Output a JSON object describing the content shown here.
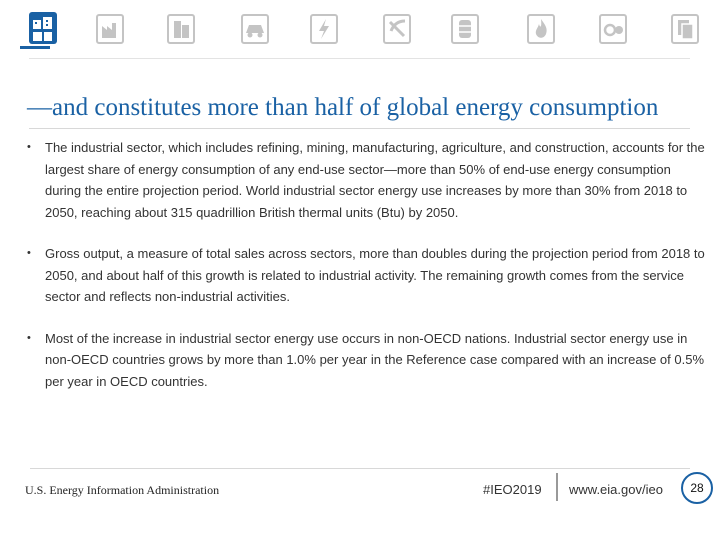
{
  "colors": {
    "accent": "#1a61a4",
    "icon_gray": "#b8b8b8",
    "text": "#333333",
    "divider": "#d8d8d8"
  },
  "icons": [
    "buildings-industry-icon",
    "industry-factory-icon",
    "commercial-buildings-icon",
    "car-icon",
    "electricity-bolt-icon",
    "coal-mining-icon",
    "oil-barrel-icon",
    "natural-gas-flame-icon",
    "renewables-gauge-icon",
    "documents-icon"
  ],
  "slide": {
    "title": "—and constitutes more than half of global energy consumption",
    "bullets": [
      "The industrial sector, which includes refining, mining, manufacturing, agriculture, and construction, accounts for the largest share of energy consumption of any end-use sector—more than 50% of end-use energy consumption during the entire projection period. World industrial sector energy use increases by more than 30% from 2018 to 2050, reaching about 315 quadrillion British thermal units (Btu) by 2050.",
      "Gross output, a measure of total sales across sectors, more than doubles during the projection period from 2018 to 2050, and about half of this growth is related to industrial activity. The remaining growth comes from the service sector and reflects non-industrial activities.",
      "Most of the increase in industrial sector energy use occurs in non-OECD nations. Industrial sector energy use in non-OECD countries grows by more than 1.0% per year in the Reference case compared with an increase of 0.5% per year in OECD countries."
    ],
    "bullet_symbol": "•"
  },
  "footer": {
    "agency": "U.S. Energy Information Administration",
    "hashtag": "#IEO2019",
    "website": "www.eia.gov/ieo",
    "page_number": "28"
  }
}
